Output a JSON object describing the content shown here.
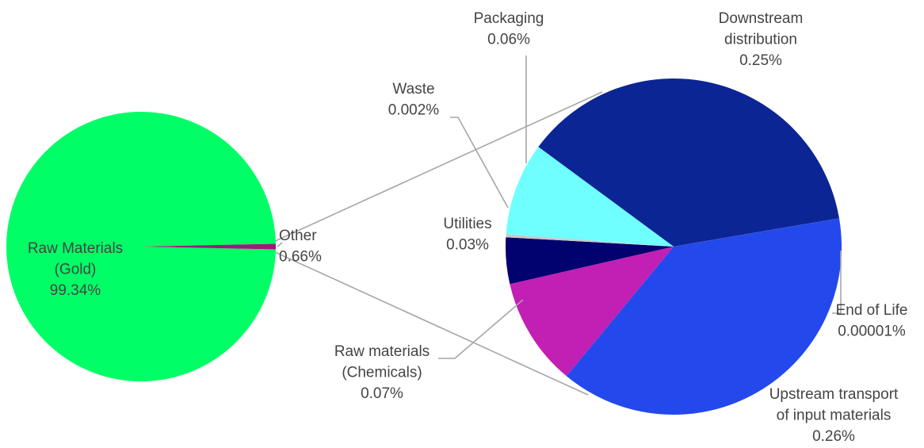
{
  "chart_data": {
    "type": "pie",
    "subtype": "pie-of-pie",
    "main_pie": {
      "slices": [
        {
          "label_lines": [
            "Raw Materials",
            "(Gold)",
            "99.34%"
          ],
          "value": 99.34,
          "color": "#00FF66"
        },
        {
          "label_lines": [
            "Other",
            "0.66%"
          ],
          "value": 0.66,
          "color": "#A0197A"
        }
      ]
    },
    "secondary_pie": {
      "breakdown_of": "Other",
      "slices": [
        {
          "label_lines": [
            "Downstream",
            "distribution",
            "0.25%"
          ],
          "value": 0.25,
          "color": "#0C2594"
        },
        {
          "label_lines": [
            "End of Life",
            "0.00001%"
          ],
          "value": 1e-05,
          "color": "#FFFFFF"
        },
        {
          "label_lines": [
            "Upstream transport",
            "of input materials",
            "0.26%"
          ],
          "value": 0.26,
          "color": "#2349EC"
        },
        {
          "label_lines": [
            "Raw materials",
            "(Chemicals)",
            "0.07%"
          ],
          "value": 0.07,
          "color": "#C21FB4"
        },
        {
          "label_lines": [
            "Utilities",
            "0.03%"
          ],
          "value": 0.03,
          "color": "#01016F"
        },
        {
          "label_lines": [
            "Waste",
            "0.002%"
          ],
          "value": 0.002,
          "color": "#C9C9C9"
        },
        {
          "label_lines": [
            "Packaging",
            "0.06%"
          ],
          "value": 0.06,
          "color": "#6FFFFF"
        }
      ]
    },
    "legend": "none"
  }
}
